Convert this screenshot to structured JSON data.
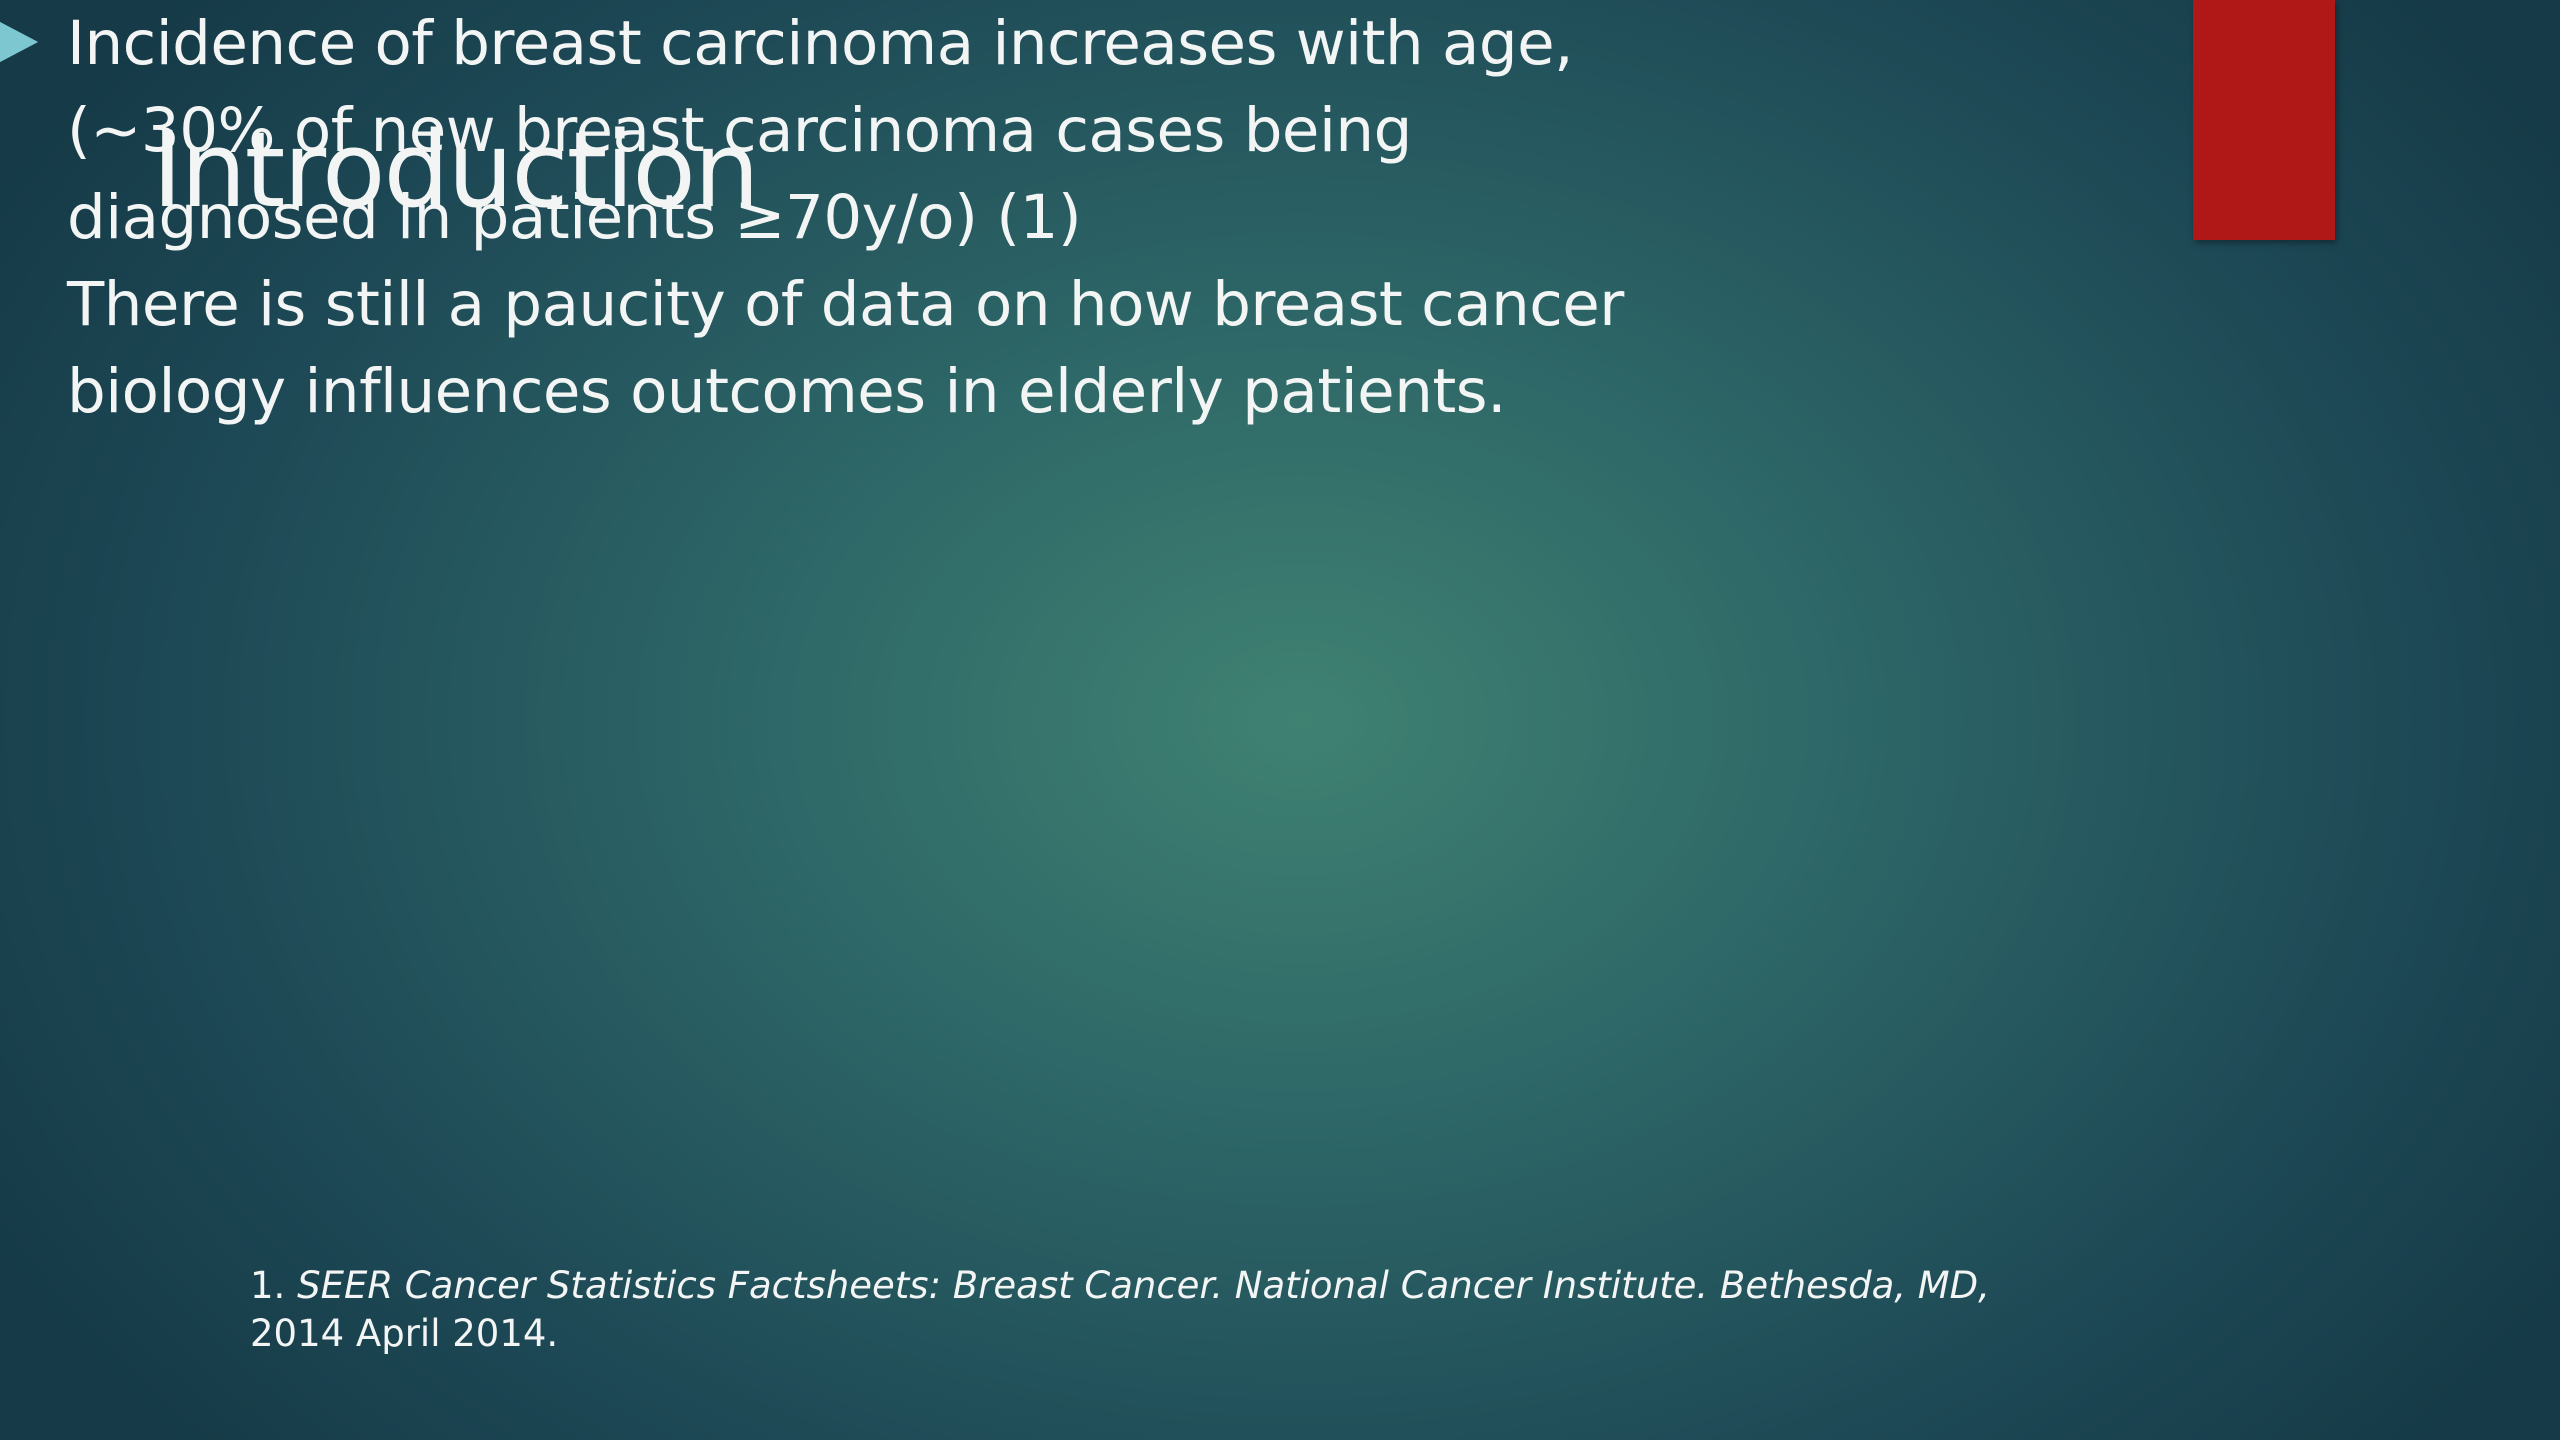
{
  "slide": {
    "title": "Introduction",
    "bullets": [
      {
        "lines": [
          "Incidence of breast carcinoma increases with age,",
          "(~30% of new breast carcinoma cases being",
          "diagnosed in patients ≥70y/o) (1)"
        ]
      },
      {
        "lines": [
          "There is still a paucity of data on how breast cancer",
          "biology influences outcomes in elderly patients."
        ]
      }
    ],
    "footnote": {
      "number": "1.",
      "citation": "SEER Cancer Statistics Factsheets: Breast Cancer. National Cancer Institute. Bethesda, MD,",
      "date": "2014 April 2014."
    }
  }
}
